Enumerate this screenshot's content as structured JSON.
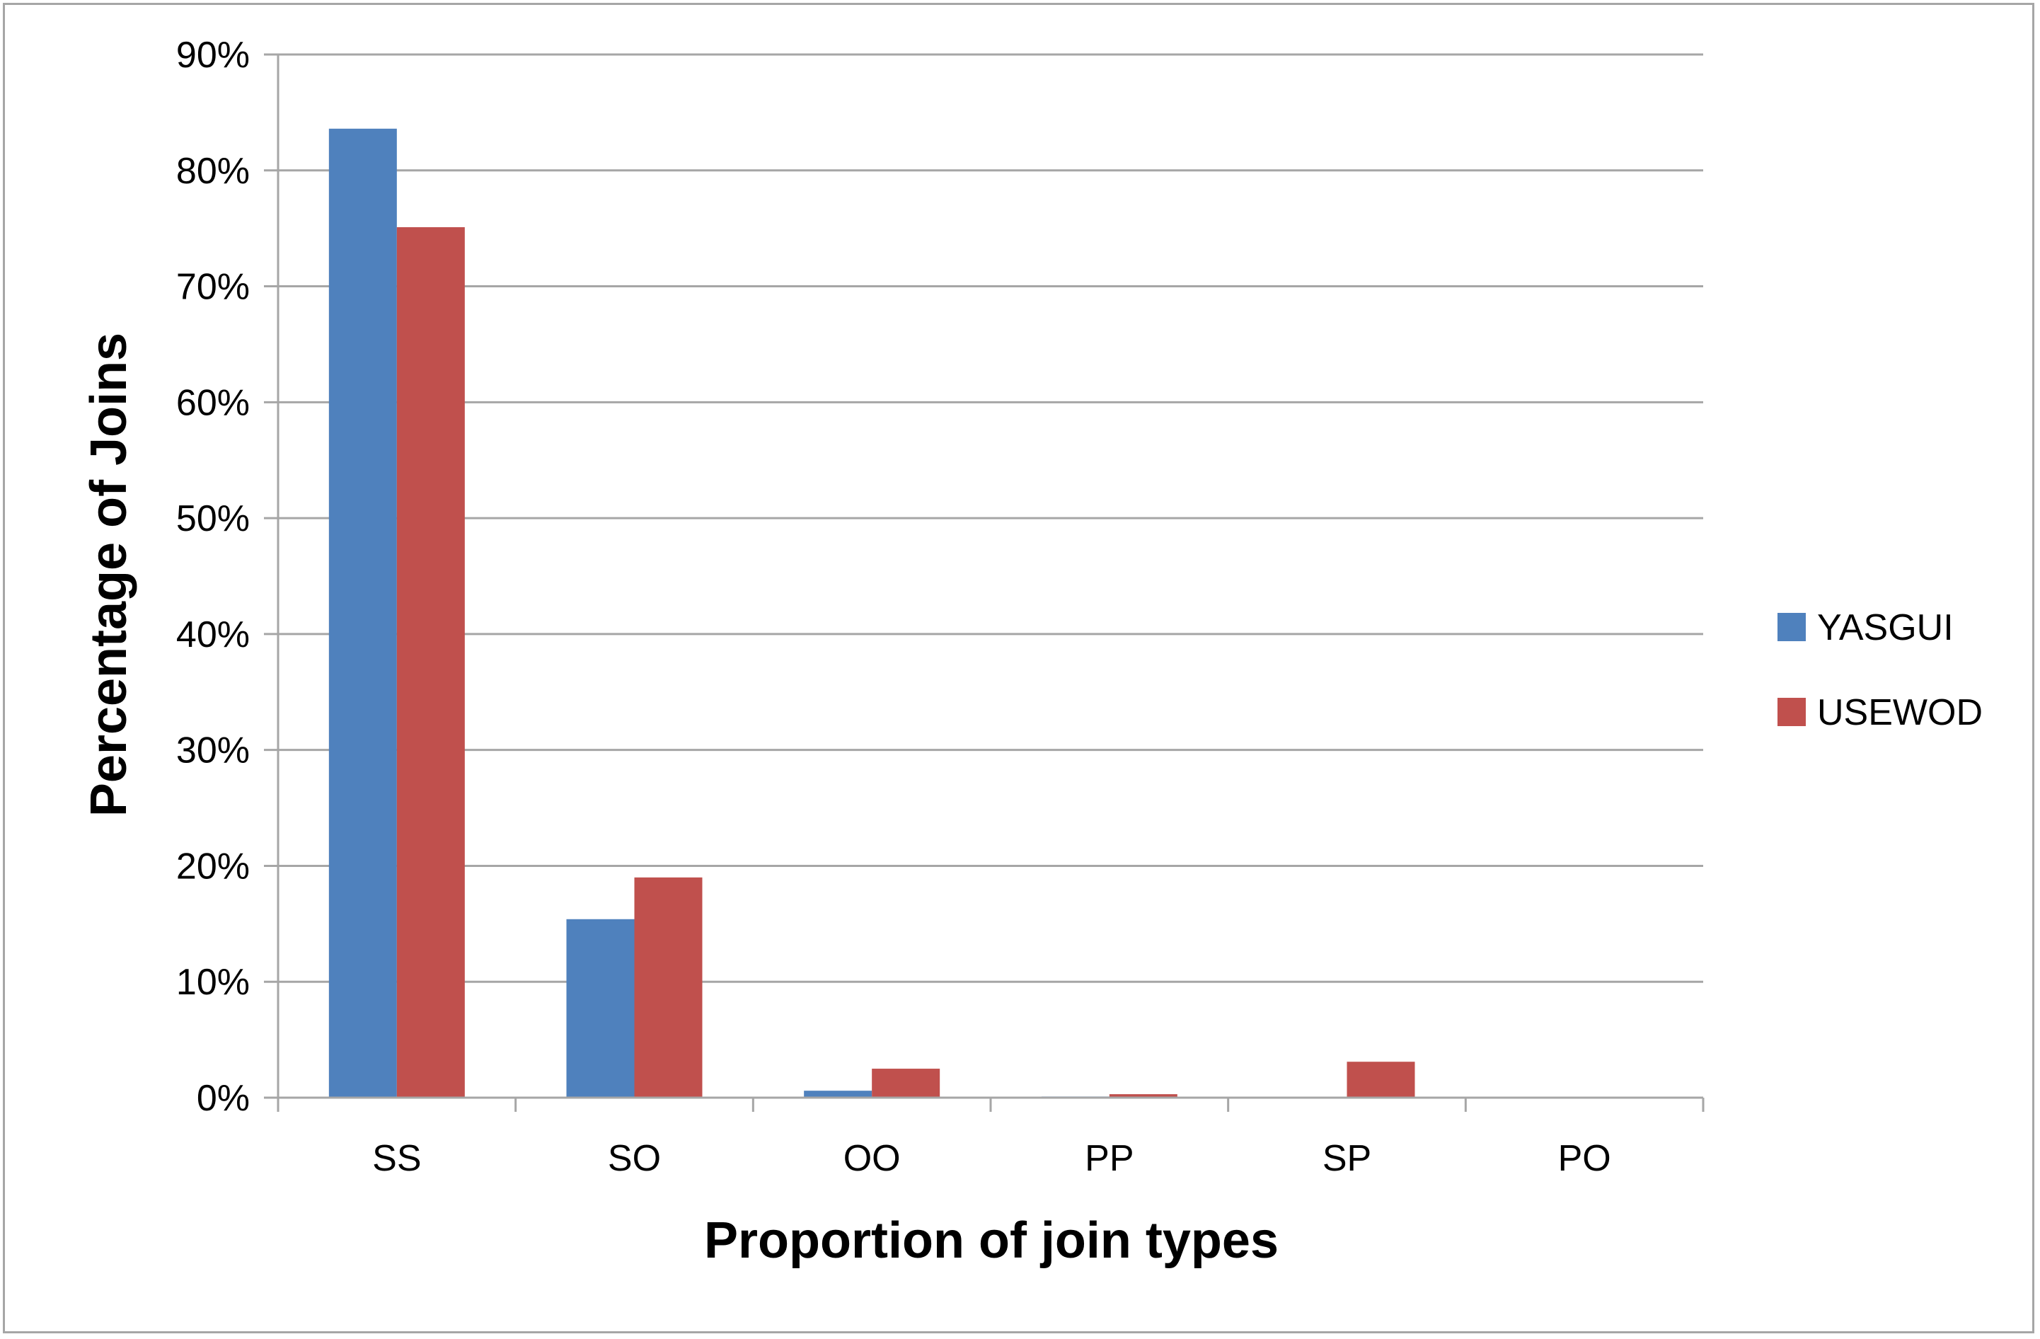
{
  "chart_data": {
    "type": "bar",
    "categories": [
      "SS",
      "SO",
      "OO",
      "PP",
      "SP",
      "PO"
    ],
    "series": [
      {
        "name": "YASGUI",
        "color": "#4f81bd",
        "values": [
          83.6,
          15.4,
          0.6,
          0.1,
          0.05,
          0
        ]
      },
      {
        "name": "USEWOD",
        "color": "#c0504d",
        "values": [
          75.1,
          19.0,
          2.5,
          0.3,
          3.1,
          0
        ]
      }
    ],
    "xlabel": "Proportion of join types",
    "ylabel": "Percentage of Joins",
    "ylim": [
      0,
      90
    ],
    "yticks": [
      "0%",
      "10%",
      "20%",
      "30%",
      "40%",
      "50%",
      "60%",
      "70%",
      "80%",
      "90%"
    ],
    "grid": true,
    "legend_position": "right"
  }
}
